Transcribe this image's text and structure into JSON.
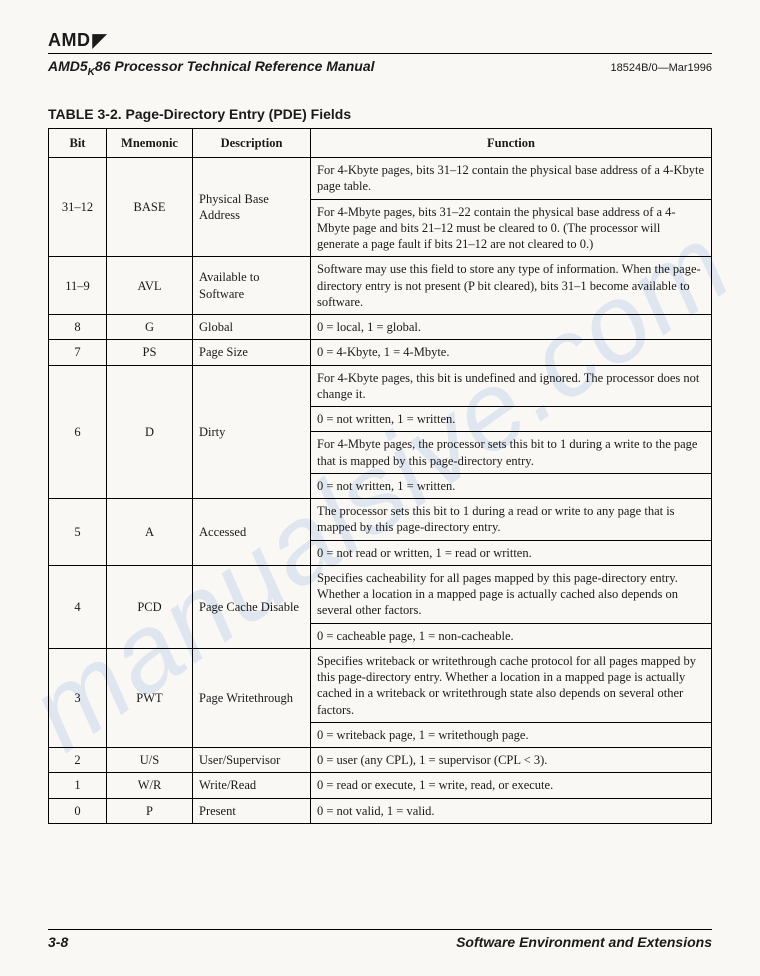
{
  "brand": "AMD",
  "header": {
    "manual_title_pre": "AMD5",
    "manual_title_sub": "K",
    "manual_title_post": "86 Processor Technical Reference Manual",
    "docref": "18524B/0—Mar1996"
  },
  "table_caption": "TABLE 3-2.   Page-Directory Entry (PDE) Fields",
  "columns": [
    "Bit",
    "Mnemonic",
    "Description",
    "Function"
  ],
  "rows": [
    {
      "bit": "31–12",
      "mnem": "BASE",
      "desc": "Physical Base Address",
      "func": [
        "For 4-Kbyte pages, bits 31–12 contain the physical base address of a 4-Kbyte page table.",
        "For 4-Mbyte pages, bits 31–22 contain the physical base address of a 4-Mbyte page and bits 21–12 must be cleared to 0. (The processor will generate a page fault if bits 21–12 are not cleared to 0.)"
      ]
    },
    {
      "bit": "11–9",
      "mnem": "AVL",
      "desc": "Available to Software",
      "func": [
        "Software may use this field to store any type of information. When the page-directory entry is not present (P bit cleared), bits 31–1 become available to software."
      ]
    },
    {
      "bit": "8",
      "mnem": "G",
      "desc": "Global",
      "func": [
        "0 = local, 1 = global."
      ]
    },
    {
      "bit": "7",
      "mnem": "PS",
      "desc": "Page Size",
      "func": [
        "0 = 4-Kbyte, 1 = 4-Mbyte."
      ]
    },
    {
      "bit": "6",
      "mnem": "D",
      "desc": "Dirty",
      "func": [
        "For 4-Kbyte pages, this bit is undefined and ignored. The processor does not change it.",
        "0 = not written, 1 = written.",
        "For 4-Mbyte pages, the processor sets this bit to 1 during a write to the page that is mapped by this page-directory entry.",
        "0 = not written, 1 = written."
      ]
    },
    {
      "bit": "5",
      "mnem": "A",
      "desc": "Accessed",
      "func": [
        "The processor sets this bit to 1 during a read or write to any page that is mapped by this page-directory entry.",
        "0 = not read or written, 1 = read or written."
      ]
    },
    {
      "bit": "4",
      "mnem": "PCD",
      "desc": "Page Cache Disable",
      "func": [
        "Specifies cacheability for all pages mapped by this page-directory entry. Whether a location in a mapped page is actually cached also depends on several other factors.",
        "0 = cacheable page, 1 = non-cacheable."
      ]
    },
    {
      "bit": "3",
      "mnem": "PWT",
      "desc": "Page Writethrough",
      "func": [
        "Specifies writeback or writethrough cache protocol for all pages mapped by this page-directory entry. Whether a location in a mapped page is actually cached in a writeback or writethrough state also depends on several other factors.",
        "0 = writeback page, 1 = writethough page."
      ]
    },
    {
      "bit": "2",
      "mnem": "U/S",
      "desc": "User/Supervisor",
      "func": [
        "0 = user (any CPL), 1 = supervisor (CPL < 3)."
      ]
    },
    {
      "bit": "1",
      "mnem": "W/R",
      "desc": "Write/Read",
      "func": [
        "0 = read or execute, 1 = write, read, or execute."
      ]
    },
    {
      "bit": "0",
      "mnem": "P",
      "desc": "Present",
      "func": [
        "0 = not valid, 1 = valid."
      ]
    }
  ],
  "footer": {
    "page": "3-8",
    "section": "Software Environment and Extensions"
  },
  "watermark": "manualsive.com"
}
